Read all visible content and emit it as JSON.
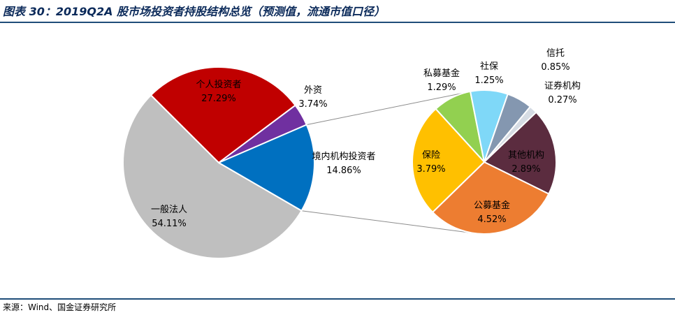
{
  "header": {
    "title": "图表 30：2019Q2A 股市场投资者持股结构总览（预测值，流通市值口径）"
  },
  "footer": {
    "source": "来源：Wind、国金证券研究所"
  },
  "chart_data": {
    "type": "pie",
    "subtype": "pie-of-pie",
    "main_pie": {
      "slices": [
        {
          "label": "个人投资者",
          "value": 27.29,
          "value_label": "27.29%",
          "color": "#c00000"
        },
        {
          "label": "外资",
          "value": 3.74,
          "value_label": "3.74%",
          "color": "#7030a0"
        },
        {
          "label": "境内机构投资者",
          "value": 14.86,
          "value_label": "14.86%",
          "color": "#0070c0"
        },
        {
          "label": "一般法人",
          "value": 54.11,
          "value_label": "54.11%",
          "color": "#bfbfbf"
        }
      ]
    },
    "secondary_pie": {
      "source_slice": "境内机构投资者",
      "slices": [
        {
          "label": "私募基金",
          "value": 1.29,
          "value_label": "1.29%",
          "color": "#92d050"
        },
        {
          "label": "社保",
          "value": 1.25,
          "value_label": "1.25%",
          "color": "#7fd8f8"
        },
        {
          "label": "信托",
          "value": 0.85,
          "value_label": "0.85%",
          "color": "#8497b0"
        },
        {
          "label": "证券机构",
          "value": 0.27,
          "value_label": "0.27%",
          "color": "#d6dce4"
        },
        {
          "label": "其他机构",
          "value": 2.89,
          "value_label": "2.89%",
          "color": "#5b2c3f"
        },
        {
          "label": "公募基金",
          "value": 4.52,
          "value_label": "4.52%",
          "color": "#ed7d31"
        },
        {
          "label": "保险",
          "value": 3.79,
          "value_label": "3.79%",
          "color": "#ffc000"
        }
      ]
    },
    "legend": "none",
    "grid": false
  }
}
